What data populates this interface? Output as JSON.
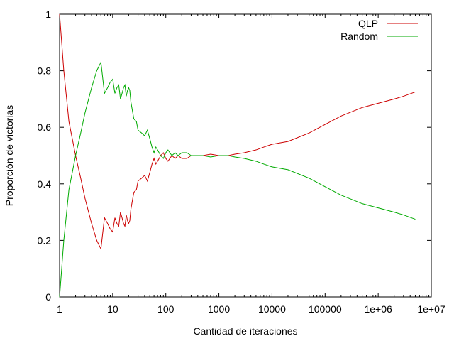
{
  "chart_data": {
    "type": "line",
    "title": "",
    "xlabel": "Cantidad de iteraciones",
    "ylabel": "Proporción de victorias",
    "xscale": "log",
    "xlim": [
      1,
      10000000
    ],
    "ylim": [
      0,
      1
    ],
    "x_ticks": [
      {
        "value": 1,
        "label": "1"
      },
      {
        "value": 10,
        "label": "10"
      },
      {
        "value": 100,
        "label": "100"
      },
      {
        "value": 1000,
        "label": "1000"
      },
      {
        "value": 10000,
        "label": "10000"
      },
      {
        "value": 100000,
        "label": "100000"
      },
      {
        "value": 1000000,
        "label": "1e+06"
      },
      {
        "value": 10000000,
        "label": "1e+07"
      }
    ],
    "y_ticks": [
      {
        "value": 0,
        "label": "0"
      },
      {
        "value": 0.2,
        "label": "0.2"
      },
      {
        "value": 0.4,
        "label": "0.4"
      },
      {
        "value": 0.6,
        "label": "0.6"
      },
      {
        "value": 0.8,
        "label": "0.8"
      },
      {
        "value": 1,
        "label": "1"
      }
    ],
    "grid": false,
    "legend_position": "top-right",
    "series": [
      {
        "name": "QLP",
        "color": "#cc0000",
        "points": [
          [
            1,
            1.0
          ],
          [
            1.2,
            0.8
          ],
          [
            1.5,
            0.62
          ],
          [
            2,
            0.5
          ],
          [
            2.5,
            0.42
          ],
          [
            3,
            0.35
          ],
          [
            4,
            0.26
          ],
          [
            5,
            0.2
          ],
          [
            6,
            0.17
          ],
          [
            7,
            0.28
          ],
          [
            8,
            0.26
          ],
          [
            9,
            0.24
          ],
          [
            10,
            0.23
          ],
          [
            11,
            0.28
          ],
          [
            12,
            0.26
          ],
          [
            13,
            0.25
          ],
          [
            14,
            0.3
          ],
          [
            15,
            0.28
          ],
          [
            16,
            0.26
          ],
          [
            17,
            0.25
          ],
          [
            18,
            0.29
          ],
          [
            19,
            0.27
          ],
          [
            20,
            0.26
          ],
          [
            21,
            0.27
          ],
          [
            22,
            0.31
          ],
          [
            25,
            0.37
          ],
          [
            28,
            0.38
          ],
          [
            30,
            0.41
          ],
          [
            35,
            0.42
          ],
          [
            40,
            0.43
          ],
          [
            45,
            0.41
          ],
          [
            50,
            0.44
          ],
          [
            55,
            0.47
          ],
          [
            60,
            0.49
          ],
          [
            65,
            0.47
          ],
          [
            70,
            0.48
          ],
          [
            80,
            0.5
          ],
          [
            90,
            0.51
          ],
          [
            100,
            0.49
          ],
          [
            110,
            0.48
          ],
          [
            130,
            0.5
          ],
          [
            150,
            0.49
          ],
          [
            170,
            0.5
          ],
          [
            200,
            0.49
          ],
          [
            250,
            0.49
          ],
          [
            300,
            0.5
          ],
          [
            400,
            0.5
          ],
          [
            500,
            0.5
          ],
          [
            700,
            0.505
          ],
          [
            1000,
            0.5
          ],
          [
            1500,
            0.5
          ],
          [
            2000,
            0.505
          ],
          [
            3000,
            0.51
          ],
          [
            5000,
            0.52
          ],
          [
            7000,
            0.53
          ],
          [
            10000,
            0.54
          ],
          [
            20000,
            0.55
          ],
          [
            50000,
            0.58
          ],
          [
            100000,
            0.61
          ],
          [
            200000,
            0.64
          ],
          [
            500000,
            0.67
          ],
          [
            1000000,
            0.685
          ],
          [
            2000000,
            0.7
          ],
          [
            3000000,
            0.71
          ],
          [
            5000000,
            0.725
          ]
        ]
      },
      {
        "name": "Random",
        "color": "#00aa00",
        "points": [
          [
            1,
            0.0
          ],
          [
            1.2,
            0.2
          ],
          [
            1.5,
            0.38
          ],
          [
            2,
            0.5
          ],
          [
            2.5,
            0.58
          ],
          [
            3,
            0.65
          ],
          [
            4,
            0.74
          ],
          [
            5,
            0.8
          ],
          [
            6,
            0.83
          ],
          [
            7,
            0.72
          ],
          [
            8,
            0.74
          ],
          [
            9,
            0.76
          ],
          [
            10,
            0.77
          ],
          [
            11,
            0.72
          ],
          [
            12,
            0.74
          ],
          [
            13,
            0.75
          ],
          [
            14,
            0.7
          ],
          [
            15,
            0.72
          ],
          [
            16,
            0.74
          ],
          [
            17,
            0.75
          ],
          [
            18,
            0.71
          ],
          [
            19,
            0.73
          ],
          [
            20,
            0.74
          ],
          [
            21,
            0.73
          ],
          [
            22,
            0.69
          ],
          [
            25,
            0.63
          ],
          [
            28,
            0.62
          ],
          [
            30,
            0.59
          ],
          [
            35,
            0.58
          ],
          [
            40,
            0.57
          ],
          [
            45,
            0.59
          ],
          [
            50,
            0.56
          ],
          [
            55,
            0.53
          ],
          [
            60,
            0.51
          ],
          [
            65,
            0.53
          ],
          [
            70,
            0.52
          ],
          [
            80,
            0.5
          ],
          [
            90,
            0.49
          ],
          [
            100,
            0.51
          ],
          [
            110,
            0.52
          ],
          [
            130,
            0.5
          ],
          [
            150,
            0.51
          ],
          [
            170,
            0.5
          ],
          [
            200,
            0.51
          ],
          [
            250,
            0.51
          ],
          [
            300,
            0.5
          ],
          [
            400,
            0.5
          ],
          [
            500,
            0.5
          ],
          [
            700,
            0.495
          ],
          [
            1000,
            0.5
          ],
          [
            1500,
            0.5
          ],
          [
            2000,
            0.495
          ],
          [
            3000,
            0.49
          ],
          [
            5000,
            0.48
          ],
          [
            7000,
            0.47
          ],
          [
            10000,
            0.46
          ],
          [
            20000,
            0.45
          ],
          [
            50000,
            0.42
          ],
          [
            100000,
            0.39
          ],
          [
            200000,
            0.36
          ],
          [
            500000,
            0.33
          ],
          [
            1000000,
            0.315
          ],
          [
            2000000,
            0.3
          ],
          [
            3000000,
            0.29
          ],
          [
            5000000,
            0.275
          ]
        ]
      }
    ]
  }
}
